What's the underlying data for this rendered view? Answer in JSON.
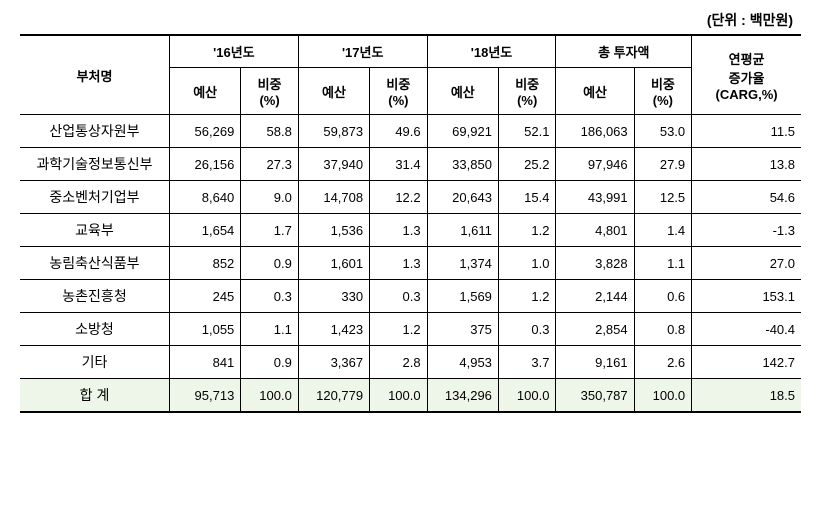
{
  "unit_label": "(단위 : 백만원)",
  "headers": {
    "dept": "부처명",
    "y16": "'16년도",
    "y17": "'17년도",
    "y18": "'18년도",
    "total": "총 투자액",
    "carg_line1": "연평균",
    "carg_line2": "증가율",
    "carg_line3": "(CARG,%)",
    "budget": "예산",
    "ratio_line1": "비중",
    "ratio_line2": "(%)"
  },
  "rows": [
    {
      "dept": "산업통상자원부",
      "y16b": "56,269",
      "y16r": "58.8",
      "y17b": "59,873",
      "y17r": "49.6",
      "y18b": "69,921",
      "y18r": "52.1",
      "tb": "186,063",
      "tr": "53.0",
      "carg": "11.5"
    },
    {
      "dept": "과학기술정보통신부",
      "y16b": "26,156",
      "y16r": "27.3",
      "y17b": "37,940",
      "y17r": "31.4",
      "y18b": "33,850",
      "y18r": "25.2",
      "tb": "97,946",
      "tr": "27.9",
      "carg": "13.8"
    },
    {
      "dept": "중소벤처기업부",
      "y16b": "8,640",
      "y16r": "9.0",
      "y17b": "14,708",
      "y17r": "12.2",
      "y18b": "20,643",
      "y18r": "15.4",
      "tb": "43,991",
      "tr": "12.5",
      "carg": "54.6"
    },
    {
      "dept": "교육부",
      "y16b": "1,654",
      "y16r": "1.7",
      "y17b": "1,536",
      "y17r": "1.3",
      "y18b": "1,611",
      "y18r": "1.2",
      "tb": "4,801",
      "tr": "1.4",
      "carg": "-1.3"
    },
    {
      "dept": "농림축산식품부",
      "y16b": "852",
      "y16r": "0.9",
      "y17b": "1,601",
      "y17r": "1.3",
      "y18b": "1,374",
      "y18r": "1.0",
      "tb": "3,828",
      "tr": "1.1",
      "carg": "27.0"
    },
    {
      "dept": "농촌진흥청",
      "y16b": "245",
      "y16r": "0.3",
      "y17b": "330",
      "y17r": "0.3",
      "y18b": "1,569",
      "y18r": "1.2",
      "tb": "2,144",
      "tr": "0.6",
      "carg": "153.1"
    },
    {
      "dept": "소방청",
      "y16b": "1,055",
      "y16r": "1.1",
      "y17b": "1,423",
      "y17r": "1.2",
      "y18b": "375",
      "y18r": "0.3",
      "tb": "2,854",
      "tr": "0.8",
      "carg": "-40.4"
    },
    {
      "dept": "기타",
      "y16b": "841",
      "y16r": "0.9",
      "y17b": "3,367",
      "y17r": "2.8",
      "y18b": "4,953",
      "y18r": "3.7",
      "tb": "9,161",
      "tr": "2.6",
      "carg": "142.7"
    }
  ],
  "total_row": {
    "dept": "합 계",
    "y16b": "95,713",
    "y16r": "100.0",
    "y17b": "120,779",
    "y17r": "100.0",
    "y18b": "134,296",
    "y18r": "100.0",
    "tb": "350,787",
    "tr": "100.0",
    "carg": "18.5"
  },
  "styling": {
    "table_border_color": "#000000",
    "total_row_bg": "#eef5e9",
    "background_color": "#ffffff",
    "font_family": "Malgun Gothic",
    "header_fontsize": 13,
    "cell_fontsize": 13,
    "top_border_width": 2
  }
}
